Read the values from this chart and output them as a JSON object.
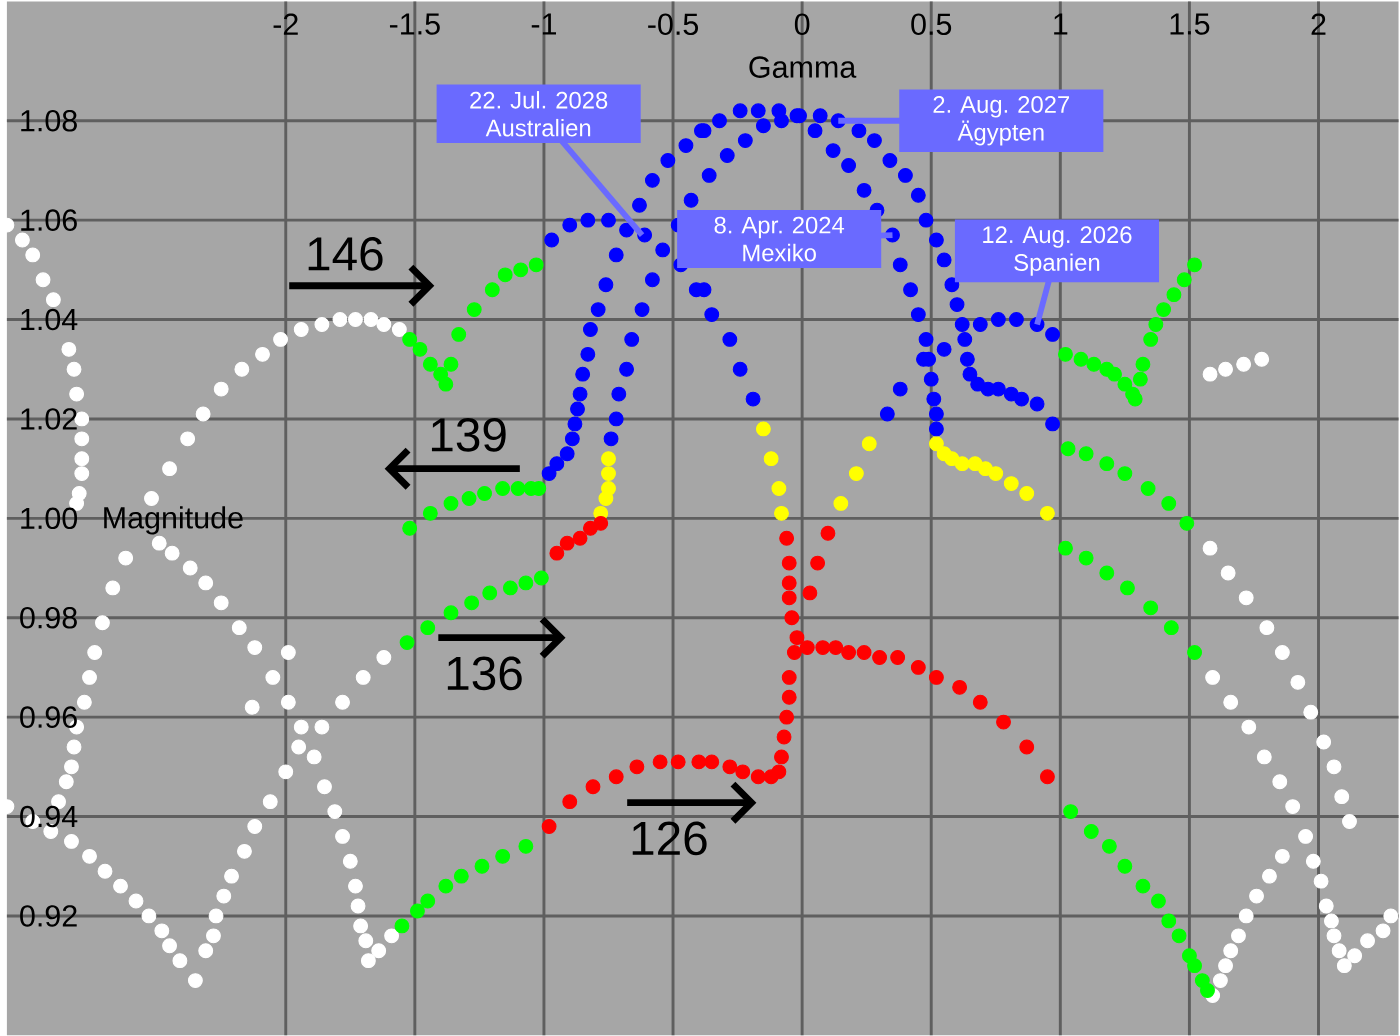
{
  "chart_data": {
    "type": "scatter",
    "xlabel": "Gamma",
    "ylabel": "Magnitude",
    "xlim": [
      -3.08,
      2.31
    ],
    "ylim": [
      0.896,
      1.104
    ],
    "xticks": [
      -2,
      -1.5,
      -1,
      -0.5,
      0,
      0.5,
      1,
      1.5,
      2
    ],
    "yticks": [
      0.92,
      0.94,
      0.96,
      0.98,
      {
        "value": 1,
        "label": "1.00"
      },
      1.02,
      1.04,
      1.06,
      1.08
    ],
    "grid": true,
    "marker": "circle",
    "series": [
      {
        "color": "#ffffff",
        "x": [
          -3.08,
          -3.02,
          -2.98,
          -2.94,
          -2.9,
          -2.84,
          -2.82,
          -2.81,
          -2.79,
          -2.79,
          -2.79,
          -2.79,
          -2.8,
          -2.81,
          -2.52,
          -2.45,
          -2.38,
          -2.32,
          -2.25,
          -2.17,
          -2.09,
          -2.02,
          -1.94,
          -1.86,
          -1.79,
          -1.73,
          -1.67,
          -1.62,
          -1.56,
          -3.08,
          -2.98,
          -2.91,
          -2.88,
          -2.85,
          -2.83,
          -2.82,
          -2.81,
          -2.78,
          -2.76,
          -2.74,
          -2.71,
          -2.67,
          -2.62,
          -2.49,
          -2.44,
          -2.37,
          -2.31,
          -2.25,
          -2.18,
          -2.12,
          -2.05,
          -2.13,
          -1.99,
          -1.99,
          -1.94,
          -1.89,
          -1.85,
          -1.81,
          -1.78,
          -1.75,
          -1.73,
          -1.72,
          -1.71,
          -1.69,
          -1.68,
          -1.64,
          -1.59,
          -2.83,
          -2.76,
          -2.7,
          -2.64,
          -2.58,
          -2.53,
          -2.48,
          -2.45,
          -2.41,
          -2.35,
          -2.31,
          -2.28,
          -2.27,
          -2.24,
          -2.21,
          -2.16,
          -2.12,
          -2.06,
          -2.0,
          -1.95,
          -1.86,
          -1.78,
          -1.7,
          -1.62,
          1.58,
          1.65,
          1.72,
          1.8,
          1.86,
          1.92,
          1.97,
          2.02,
          2.06,
          2.09,
          2.12,
          1.59,
          1.66,
          1.73,
          1.79,
          1.85,
          1.9,
          1.95,
          1.98,
          2.01,
          2.03,
          2.05,
          2.06,
          2.08,
          2.1,
          2.14,
          2.19,
          2.25,
          2.28,
          1.86,
          1.81,
          1.76,
          1.72,
          1.69,
          1.66,
          1.64,
          1.62,
          1.59,
          1.58,
          1.64,
          1.71,
          1.78
        ],
        "values": [
          1.059,
          1.056,
          1.053,
          1.048,
          1.044,
          1.034,
          1.03,
          1.025,
          1.02,
          1.016,
          1.012,
          1.009,
          1.005,
          1.003,
          1.004,
          1.01,
          1.016,
          1.021,
          1.026,
          1.03,
          1.033,
          1.036,
          1.038,
          1.039,
          1.04,
          1.04,
          1.04,
          1.039,
          1.038,
          0.942,
          0.939,
          0.937,
          0.943,
          0.947,
          0.95,
          0.954,
          0.958,
          0.963,
          0.968,
          0.973,
          0.979,
          0.986,
          0.992,
          0.995,
          0.993,
          0.99,
          0.987,
          0.983,
          0.978,
          0.974,
          0.968,
          0.962,
          0.973,
          0.963,
          0.958,
          0.952,
          0.946,
          0.941,
          0.936,
          0.931,
          0.926,
          0.922,
          0.918,
          0.915,
          0.911,
          0.913,
          0.916,
          0.935,
          0.932,
          0.929,
          0.926,
          0.923,
          0.92,
          0.917,
          0.914,
          0.911,
          0.907,
          0.913,
          0.916,
          0.92,
          0.924,
          0.928,
          0.933,
          0.938,
          0.943,
          0.949,
          0.954,
          0.958,
          0.963,
          0.968,
          0.972,
          0.994,
          0.989,
          0.984,
          0.978,
          0.973,
          0.967,
          0.961,
          0.955,
          0.95,
          0.944,
          0.939,
          0.968,
          0.963,
          0.958,
          0.952,
          0.947,
          0.942,
          0.936,
          0.931,
          0.927,
          0.922,
          0.919,
          0.916,
          0.913,
          0.91,
          0.912,
          0.915,
          0.917,
          0.92,
          0.932,
          0.928,
          0.924,
          0.92,
          0.916,
          0.913,
          0.91,
          0.907,
          0.904,
          1.029,
          1.03,
          1.031,
          1.032
        ]
      },
      {
        "color": "#00ff00",
        "x": [
          -1.52,
          -1.48,
          -1.44,
          -1.4,
          -1.38,
          -1.36,
          -1.33,
          -1.27,
          -1.2,
          -1.15,
          -1.09,
          -1.03,
          -1.44,
          -1.36,
          -1.29,
          -1.23,
          -1.16,
          -1.1,
          -1.05,
          -1.02,
          -1.52,
          -1.53,
          -1.45,
          -1.36,
          -1.28,
          -1.21,
          -1.13,
          -1.07,
          -1.01,
          -1.55,
          -1.49,
          -1.45,
          -1.38,
          -1.32,
          -1.24,
          -1.16,
          -1.07,
          1.02,
          1.08,
          1.13,
          1.18,
          1.21,
          1.25,
          1.28,
          1.29,
          1.31,
          1.32,
          1.35,
          1.37,
          1.4,
          1.44,
          1.48,
          1.52,
          1.03,
          1.1,
          1.18,
          1.25,
          1.34,
          1.42,
          1.49,
          1.02,
          1.1,
          1.18,
          1.26,
          1.35,
          1.43,
          1.52,
          1.04,
          1.12,
          1.19,
          1.25,
          1.32,
          1.38,
          1.42,
          1.46,
          1.5,
          1.52,
          1.55,
          1.57
        ],
        "values": [
          1.036,
          1.034,
          1.031,
          1.029,
          1.027,
          1.031,
          1.037,
          1.042,
          1.046,
          1.049,
          1.05,
          1.051,
          1.001,
          1.003,
          1.004,
          1.005,
          1.006,
          1.006,
          1.006,
          1.006,
          0.998,
          0.975,
          0.978,
          0.981,
          0.983,
          0.985,
          0.986,
          0.987,
          0.988,
          0.918,
          0.921,
          0.923,
          0.926,
          0.928,
          0.93,
          0.932,
          0.934,
          1.033,
          1.032,
          1.031,
          1.03,
          1.029,
          1.027,
          1.025,
          1.024,
          1.028,
          1.031,
          1.036,
          1.039,
          1.042,
          1.045,
          1.048,
          1.051,
          1.014,
          1.013,
          1.011,
          1.009,
          1.006,
          1.003,
          0.999,
          0.994,
          0.992,
          0.989,
          0.986,
          0.982,
          0.978,
          0.973,
          0.941,
          0.937,
          0.934,
          0.93,
          0.926,
          0.923,
          0.919,
          0.916,
          0.912,
          0.91,
          0.907,
          0.905
        ]
      },
      {
        "color": "#ffff00",
        "x": [
          -0.75,
          -0.75,
          -0.75,
          -0.76,
          -0.78,
          -0.15,
          -0.12,
          -0.09,
          -0.08,
          0.26,
          0.21,
          0.15,
          0.52,
          0.55,
          0.58,
          0.62,
          0.67,
          0.71,
          0.75,
          0.81,
          0.87,
          0.95
        ],
        "values": [
          1.012,
          1.009,
          1.006,
          1.004,
          1.001,
          1.018,
          1.012,
          1.006,
          1.001,
          1.015,
          1.009,
          1.003,
          1.015,
          1.013,
          1.012,
          1.011,
          1.011,
          1.01,
          1.009,
          1.007,
          1.005,
          1.001
        ]
      },
      {
        "color": "#ff0000",
        "x": [
          -0.78,
          -0.82,
          -0.86,
          -0.91,
          -0.95,
          -0.98,
          -0.9,
          -0.81,
          -0.72,
          -0.64,
          -0.55,
          -0.48,
          -0.4,
          -0.35,
          -0.28,
          -0.23,
          -0.17,
          -0.12,
          -0.09,
          -0.08,
          -0.07,
          -0.06,
          -0.05,
          -0.05,
          -0.03,
          -0.02,
          -0.04,
          -0.05,
          -0.05,
          -0.05,
          -0.06,
          0.02,
          0.08,
          0.13,
          0.18,
          0.24,
          0.3,
          0.37,
          0.45,
          0.52,
          0.61,
          0.69,
          0.78,
          0.87,
          0.95,
          0.1,
          0.06,
          0.03
        ],
        "values": [
          0.999,
          0.998,
          0.996,
          0.995,
          0.993,
          0.938,
          0.943,
          0.946,
          0.948,
          0.95,
          0.951,
          0.951,
          0.951,
          0.951,
          0.95,
          0.949,
          0.948,
          0.948,
          0.949,
          0.952,
          0.956,
          0.96,
          0.964,
          0.968,
          0.973,
          0.976,
          0.98,
          0.984,
          0.987,
          0.991,
          0.996,
          0.974,
          0.974,
          0.974,
          0.973,
          0.973,
          0.972,
          0.972,
          0.97,
          0.968,
          0.966,
          0.963,
          0.959,
          0.954,
          0.948,
          0.997,
          0.991,
          0.985
        ]
      },
      {
        "color": "#0000ff",
        "x": [
          -0.97,
          -0.9,
          -0.83,
          -0.75,
          -0.68,
          -0.63,
          -0.58,
          -0.52,
          -0.45,
          -0.39,
          -0.61,
          -0.54,
          -0.47,
          -0.41,
          -0.48,
          -0.43,
          -0.72,
          -0.76,
          -0.79,
          -0.82,
          -0.83,
          -0.85,
          -0.86,
          -0.87,
          -0.88,
          -0.89,
          -0.91,
          -0.95,
          -0.98,
          -0.58,
          -0.62,
          -0.66,
          -0.68,
          -0.71,
          -0.72,
          -0.74,
          -0.38,
          -0.32,
          -0.24,
          -0.17,
          -0.09,
          -0.01,
          0.07,
          0.14,
          0.22,
          0.28,
          0.34,
          0.4,
          0.45,
          0.48,
          0.52,
          0.55,
          0.58,
          0.6,
          0.62,
          0.63,
          0.64,
          0.65,
          0.68,
          0.72,
          0.76,
          0.81,
          0.85,
          0.91,
          0.97,
          -0.29,
          -0.22,
          -0.15,
          -0.08,
          -0.02,
          0.05,
          0.12,
          0.18,
          0.24,
          0.29,
          0.35,
          0.38,
          0.42,
          0.45,
          0.48,
          0.49,
          0.5,
          0.51,
          0.52,
          0.52,
          -0.36,
          -0.38,
          -0.35,
          -0.28,
          -0.24,
          -0.19,
          0.38,
          0.33,
          0.47,
          0.55,
          0.69,
          0.76,
          0.83,
          0.91,
          0.97
        ],
        "values": [
          1.056,
          1.059,
          1.06,
          1.06,
          1.058,
          1.063,
          1.068,
          1.072,
          1.075,
          1.078,
          1.057,
          1.054,
          1.051,
          1.046,
          1.059,
          1.064,
          1.053,
          1.047,
          1.042,
          1.038,
          1.033,
          1.029,
          1.025,
          1.022,
          1.019,
          1.016,
          1.013,
          1.011,
          1.009,
          1.048,
          1.042,
          1.036,
          1.03,
          1.025,
          1.02,
          1.016,
          1.078,
          1.08,
          1.082,
          1.082,
          1.082,
          1.081,
          1.081,
          1.08,
          1.078,
          1.076,
          1.072,
          1.069,
          1.065,
          1.06,
          1.056,
          1.052,
          1.047,
          1.043,
          1.039,
          1.036,
          1.032,
          1.029,
          1.027,
          1.026,
          1.026,
          1.025,
          1.024,
          1.023,
          1.019,
          1.073,
          1.076,
          1.079,
          1.08,
          1.081,
          1.078,
          1.074,
          1.071,
          1.066,
          1.062,
          1.057,
          1.051,
          1.046,
          1.041,
          1.036,
          1.032,
          1.028,
          1.024,
          1.021,
          1.018,
          1.069,
          1.046,
          1.041,
          1.036,
          1.03,
          1.024,
          1.026,
          1.021,
          1.032,
          1.034,
          1.039,
          1.04,
          1.04,
          1.039,
          1.037
        ]
      }
    ],
    "annotations": [
      {
        "text": "22. Jul. 2028 Australien",
        "x": -0.62,
        "y": 1.057
      },
      {
        "text": "2. Aug. 2027 Ägypten",
        "x": 0.14,
        "y": 1.08
      },
      {
        "text": "8. Apr. 2024 Mexiko",
        "x": 0.35,
        "y": 1.057
      },
      {
        "text": "12. Aug. 2026 Spanien",
        "x": 0.91,
        "y": 1.039
      },
      "146",
      "139",
      "136",
      "126"
    ]
  }
}
